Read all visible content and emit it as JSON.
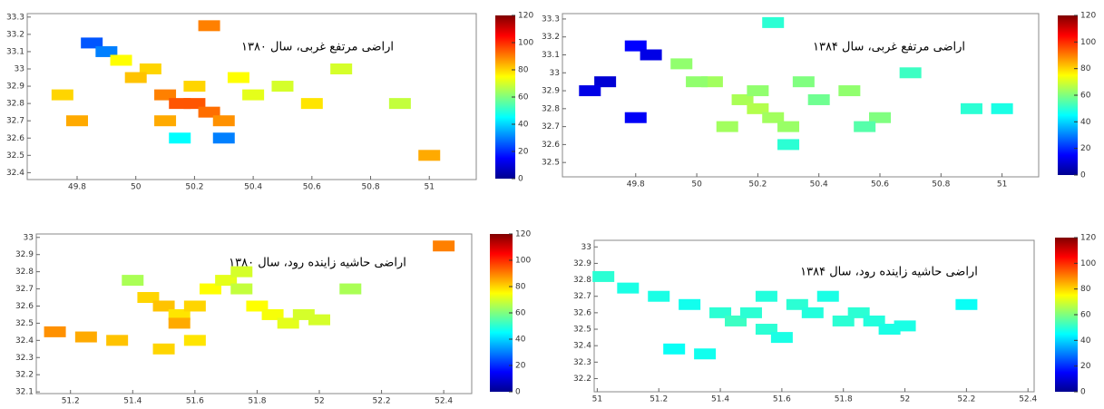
{
  "chart_data": [
    {
      "type": "heatmap",
      "title": "اراضی مرتفع غربی، سال ۱۳۸۰",
      "xlim": [
        49.63,
        51.16
      ],
      "ylim": [
        32.36,
        33.32
      ],
      "xticks": [
        49.8,
        50,
        50.2,
        50.4,
        50.6,
        50.8,
        51
      ],
      "yticks": [
        32.4,
        32.5,
        32.6,
        32.7,
        32.8,
        32.9,
        33,
        33.1,
        33.2,
        33.3
      ],
      "clim": [
        0,
        120
      ],
      "cticks": [
        0,
        20,
        40,
        60,
        80,
        100,
        120
      ],
      "x": [
        49.85,
        49.9,
        49.95,
        50.05,
        50.1,
        50.15,
        50.2,
        50.25,
        50.3,
        50.2,
        50.1,
        50.35,
        50.4,
        50.5,
        50.6,
        50.7,
        50.9,
        51.0,
        50.0,
        49.75,
        49.8,
        50.3,
        50.25,
        50.15
      ],
      "y": [
        33.15,
        33.1,
        33.05,
        33.0,
        32.85,
        32.8,
        32.8,
        32.75,
        32.7,
        32.9,
        32.7,
        32.95,
        32.85,
        32.9,
        32.8,
        33.0,
        32.8,
        32.5,
        32.95,
        32.85,
        32.7,
        32.6,
        33.25,
        32.6
      ],
      "values": [
        25,
        30,
        75,
        80,
        90,
        95,
        95,
        92,
        88,
        80,
        85,
        75,
        72,
        70,
        78,
        70,
        68,
        85,
        82,
        80,
        85,
        30,
        90,
        45
      ]
    },
    {
      "type": "heatmap",
      "title": "اراضی مرتفع غربی، سال ۱۳۸۴",
      "xlim": [
        49.56,
        51.12
      ],
      "ylim": [
        32.42,
        33.33
      ],
      "xticks": [
        49.8,
        50,
        50.2,
        50.4,
        50.6,
        50.8,
        51
      ],
      "yticks": [
        32.5,
        32.6,
        32.7,
        32.8,
        32.9,
        33,
        33.1,
        33.2,
        33.3
      ],
      "clim": [
        0,
        120
      ],
      "cticks": [
        0,
        20,
        40,
        60,
        80,
        100,
        120
      ],
      "x": [
        49.8,
        49.85,
        49.7,
        49.95,
        50.05,
        50.15,
        50.2,
        50.25,
        50.3,
        50.2,
        50.1,
        50.35,
        50.4,
        50.5,
        50.6,
        50.7,
        50.9,
        51.0,
        50.0,
        49.65,
        49.8,
        50.3,
        50.25,
        50.55
      ],
      "y": [
        33.15,
        33.1,
        32.95,
        33.05,
        32.95,
        32.85,
        32.8,
        32.75,
        32.7,
        32.9,
        32.7,
        32.95,
        32.85,
        32.9,
        32.75,
        33.0,
        32.8,
        32.8,
        32.95,
        32.9,
        32.75,
        32.6,
        33.28,
        32.7
      ],
      "values": [
        15,
        12,
        10,
        62,
        64,
        65,
        66,
        64,
        63,
        62,
        64,
        60,
        58,
        62,
        60,
        52,
        50,
        48,
        62,
        12,
        14,
        50,
        50,
        55
      ]
    },
    {
      "type": "heatmap",
      "title": "اراضی حاشیه زاینده رود، سال ۱۳۸۰",
      "xlim": [
        51.09,
        52.49
      ],
      "ylim": [
        32.09,
        33.02
      ],
      "xticks": [
        51.2,
        51.4,
        51.6,
        51.8,
        52,
        52.2,
        52.4
      ],
      "yticks": [
        32.1,
        32.2,
        32.3,
        32.4,
        32.5,
        32.6,
        32.7,
        32.8,
        32.9,
        33
      ],
      "clim": [
        0,
        120
      ],
      "cticks": [
        0,
        20,
        40,
        60,
        80,
        100,
        120
      ],
      "x": [
        51.15,
        51.25,
        51.35,
        51.45,
        51.5,
        51.55,
        51.6,
        51.65,
        51.55,
        51.7,
        51.75,
        51.8,
        51.85,
        51.9,
        51.95,
        52.0,
        51.6,
        51.5,
        52.4,
        51.75,
        51.4,
        52.1
      ],
      "y": [
        32.45,
        32.42,
        32.4,
        32.65,
        32.6,
        32.55,
        32.6,
        32.7,
        32.5,
        32.75,
        32.8,
        32.6,
        32.55,
        32.5,
        32.55,
        32.52,
        32.4,
        32.35,
        32.95,
        32.7,
        32.75,
        32.7
      ],
      "values": [
        88,
        85,
        82,
        80,
        82,
        78,
        80,
        75,
        85,
        72,
        70,
        75,
        74,
        72,
        70,
        70,
        78,
        80,
        90,
        68,
        65,
        65
      ]
    },
    {
      "type": "heatmap",
      "title": "اراضی حاشیه زاینده رود، سال ۱۳۸۴",
      "xlim": [
        50.99,
        52.42
      ],
      "ylim": [
        32.12,
        33.04
      ],
      "xticks": [
        51,
        51.2,
        51.4,
        51.6,
        51.8,
        52,
        52.2,
        52.4
      ],
      "yticks": [
        32.2,
        32.3,
        32.4,
        32.5,
        32.6,
        32.7,
        32.8,
        32.9,
        33
      ],
      "clim": [
        0,
        120
      ],
      "cticks": [
        0,
        20,
        40,
        60,
        80,
        100,
        120
      ],
      "x": [
        51.02,
        51.1,
        51.2,
        51.3,
        51.4,
        51.45,
        51.5,
        51.55,
        51.6,
        51.65,
        51.7,
        51.75,
        51.8,
        51.85,
        51.9,
        51.95,
        52.0,
        51.35,
        51.25,
        51.55,
        52.2
      ],
      "y": [
        32.82,
        32.75,
        32.7,
        32.65,
        32.6,
        32.55,
        32.6,
        32.5,
        32.45,
        32.65,
        32.6,
        32.7,
        32.55,
        32.6,
        32.55,
        32.5,
        32.52,
        32.35,
        32.38,
        32.7,
        32.65
      ],
      "values": [
        50,
        48,
        48,
        47,
        50,
        52,
        50,
        50,
        48,
        50,
        49,
        48,
        50,
        50,
        49,
        48,
        48,
        47,
        46,
        49,
        46
      ]
    }
  ]
}
